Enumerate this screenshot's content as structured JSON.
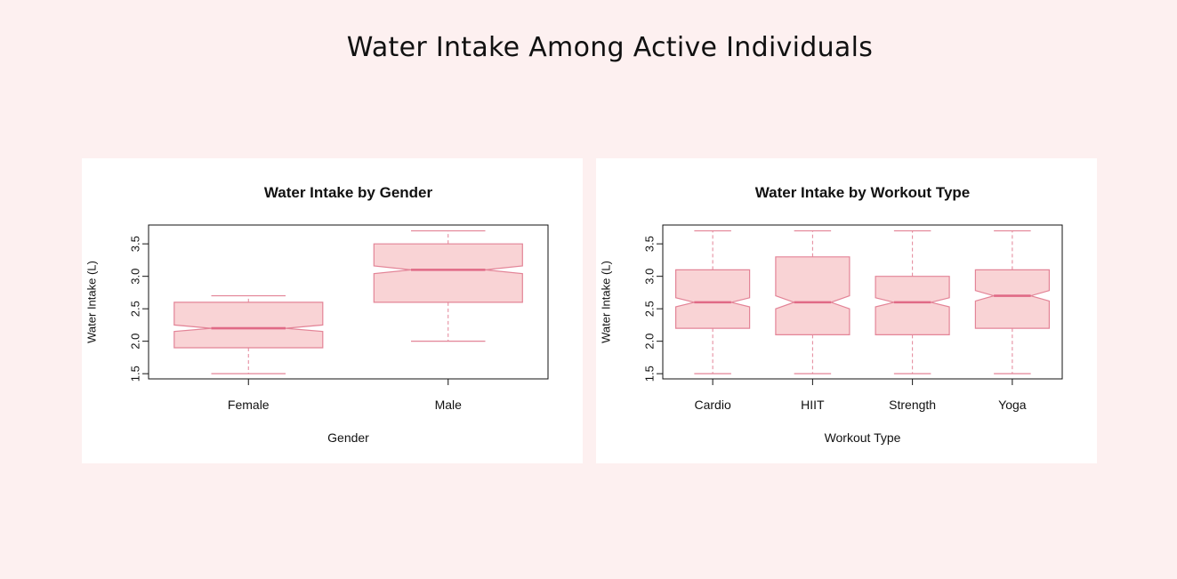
{
  "title": "Water Intake Among Active Individuals",
  "colors": {
    "background": "#fdf0f0",
    "panel": "#ffffff",
    "box_fill": "#f9d3d5",
    "box_stroke": "#e38497",
    "median": "#e06a86"
  },
  "chart_data": [
    {
      "type": "box",
      "notched": true,
      "title": "Water Intake by Gender",
      "xlabel": "Gender",
      "ylabel": "Water Intake (L)",
      "ylim": [
        1.42,
        3.79
      ],
      "yticks": [
        "1.5",
        "2.0",
        "2.5",
        "3.0",
        "3.5"
      ],
      "categories": [
        "Female",
        "Male"
      ],
      "boxes": [
        {
          "min": 1.5,
          "q1": 1.9,
          "median": 2.2,
          "q3": 2.6,
          "max": 2.7,
          "notch_low": 2.15,
          "notch_high": 2.25
        },
        {
          "min": 2.0,
          "q1": 2.6,
          "median": 3.1,
          "q3": 3.5,
          "max": 3.7,
          "notch_low": 3.04,
          "notch_high": 3.16
        }
      ]
    },
    {
      "type": "box",
      "notched": true,
      "title": "Water Intake by Workout Type",
      "xlabel": "Workout Type",
      "ylabel": "Water Intake (L)",
      "ylim": [
        1.42,
        3.79
      ],
      "yticks": [
        "1.5",
        "2.0",
        "2.5",
        "3.0",
        "3.5"
      ],
      "categories": [
        "Cardio",
        "HIIT",
        "Strength",
        "Yoga"
      ],
      "boxes": [
        {
          "min": 1.5,
          "q1": 2.2,
          "median": 2.6,
          "q3": 3.1,
          "max": 3.7,
          "notch_low": 2.53,
          "notch_high": 2.67
        },
        {
          "min": 1.5,
          "q1": 2.1,
          "median": 2.6,
          "q3": 3.3,
          "max": 3.7,
          "notch_low": 2.5,
          "notch_high": 2.7
        },
        {
          "min": 1.5,
          "q1": 2.1,
          "median": 2.6,
          "q3": 3.0,
          "max": 3.7,
          "notch_low": 2.53,
          "notch_high": 2.67
        },
        {
          "min": 1.5,
          "q1": 2.2,
          "median": 2.7,
          "q3": 3.1,
          "max": 3.7,
          "notch_low": 2.62,
          "notch_high": 2.78
        }
      ]
    }
  ]
}
